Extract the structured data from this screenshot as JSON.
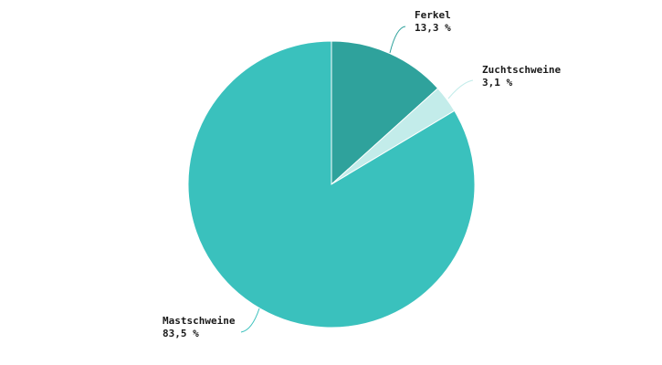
{
  "chart_data": {
    "type": "pie",
    "slices": [
      {
        "label": "Ferkel",
        "value": 13.3,
        "value_label": "13,3 %",
        "color": "#2fa29c"
      },
      {
        "label": "Zuchtschweine",
        "value": 3.1,
        "value_label": "3,1 %",
        "color": "#c3ecea"
      },
      {
        "label": "Mastschweine",
        "value": 83.5,
        "value_label": "83,5 %",
        "color": "#3ac1bd"
      }
    ],
    "start_angle": "12 o'clock",
    "direction": "clockwise",
    "legend": "none",
    "labels": "outside with leader lines"
  }
}
